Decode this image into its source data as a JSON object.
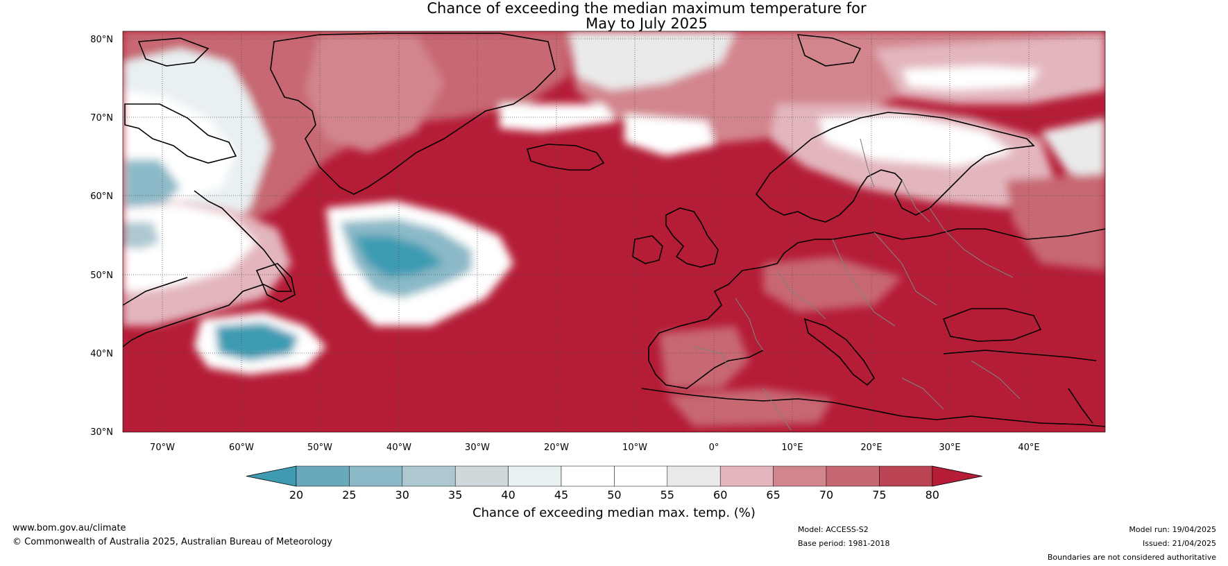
{
  "title_line1": "Chance of exceeding the median maximum temperature for",
  "title_line2": "May to July 2025",
  "lat_labels": [
    "80°N",
    "70°N",
    "60°N",
    "50°N",
    "40°N",
    "30°N"
  ],
  "lon_labels": [
    "70°W",
    "60°W",
    "50°W",
    "40°W",
    "30°W",
    "20°W",
    "10°W",
    "0°",
    "10°E",
    "20°E",
    "30°E",
    "40°E"
  ],
  "colorbar": {
    "ticks": [
      "20",
      "25",
      "30",
      "35",
      "40",
      "45",
      "50",
      "55",
      "60",
      "65",
      "70",
      "75",
      "80"
    ],
    "colors": [
      "#3e9bb2",
      "#6aa9bb",
      "#8bb9c7",
      "#adc8d1",
      "#d0d8dc",
      "#e9f0f2",
      "#ffffff",
      "#ffffff",
      "#eaeaea",
      "#e3b6bd",
      "#d3858e",
      "#c76772",
      "#bb4453",
      "#b51c36"
    ],
    "label": "Chance of exceeding median max. temp. (%)"
  },
  "colors": {
    "ocean_high": "#b51c36",
    "land_outline": "#000000",
    "border": "#808080",
    "gridline": "#555555"
  },
  "footer": {
    "url": "www.bom.gov.au/climate",
    "copyright": "© Commonwealth of Australia 2025, Australian Bureau of Meteorology",
    "model": "Model: ACCESS-S2",
    "base_period": "Base period: 1981-2018",
    "model_run": "Model run: 19/04/2025",
    "issued": "Issued: 21/04/2025",
    "disclaimer": "Boundaries are not considered authoritative"
  }
}
